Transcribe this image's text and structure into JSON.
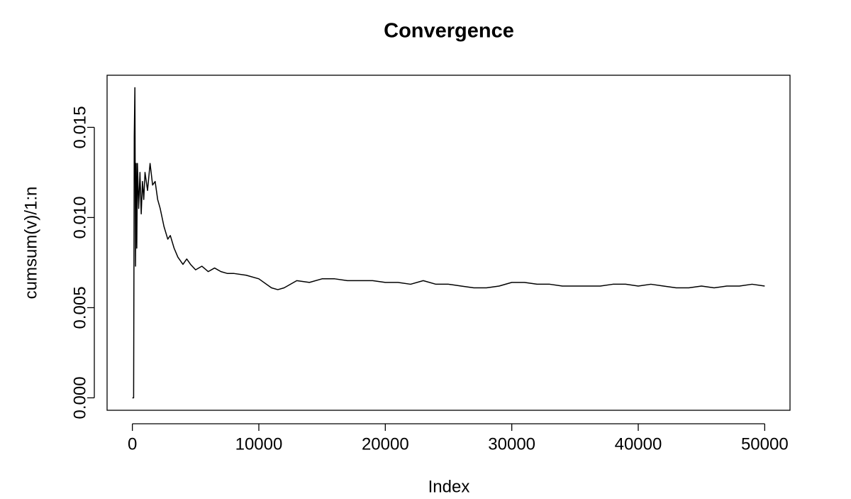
{
  "chart_data": {
    "type": "line",
    "title": "Convergence",
    "x_label": "Index",
    "y_label": "cumsum(v)/1:n",
    "color": "#000000",
    "x": [
      1,
      100,
      150,
      200,
      250,
      300,
      350,
      400,
      500,
      600,
      700,
      800,
      900,
      1000,
      1200,
      1400,
      1600,
      1800,
      2000,
      2200,
      2500,
      2800,
      3000,
      3300,
      3600,
      4000,
      4300,
      4600,
      5000,
      5500,
      6000,
      6500,
      7000,
      7500,
      8000,
      9000,
      10000,
      11000,
      11500,
      12000,
      13000,
      14000,
      15000,
      16000,
      17000,
      18000,
      19000,
      20000,
      21000,
      22000,
      23000,
      24000,
      25000,
      26000,
      27000,
      28000,
      29000,
      30000,
      31000,
      32000,
      33000,
      34000,
      35000,
      36000,
      37000,
      38000,
      39000,
      40000,
      41000,
      42000,
      43000,
      44000,
      45000,
      46000,
      47000,
      48000,
      49000,
      50000
    ],
    "values": [
      0,
      0,
      0.0145,
      0.0172,
      0.0073,
      0.013,
      0.0083,
      0.013,
      0.0105,
      0.0125,
      0.0102,
      0.012,
      0.011,
      0.0125,
      0.0115,
      0.013,
      0.0118,
      0.012,
      0.011,
      0.0105,
      0.0095,
      0.0088,
      0.009,
      0.0083,
      0.0078,
      0.0074,
      0.0077,
      0.0074,
      0.0071,
      0.0073,
      0.007,
      0.0072,
      0.007,
      0.0069,
      0.0069,
      0.0068,
      0.0066,
      0.0061,
      0.006,
      0.0061,
      0.0065,
      0.0064,
      0.0066,
      0.0066,
      0.0065,
      0.0065,
      0.0065,
      0.0064,
      0.0064,
      0.0063,
      0.0065,
      0.0063,
      0.0063,
      0.0062,
      0.0061,
      0.0061,
      0.0062,
      0.0064,
      0.0064,
      0.0063,
      0.0063,
      0.0062,
      0.0062,
      0.0062,
      0.0062,
      0.0063,
      0.0063,
      0.0062,
      0.0063,
      0.0062,
      0.0061,
      0.0061,
      0.0062,
      0.0061,
      0.0062,
      0.0062,
      0.0063,
      0.0062
    ],
    "xlim": [
      -1999,
      52000
    ],
    "ylim": [
      -0.00069,
      0.01789
    ],
    "xticks": [
      0,
      10000,
      20000,
      30000,
      40000,
      50000
    ],
    "yticks": [
      {
        "value": 0,
        "label": "0.000"
      },
      {
        "value": 0.005,
        "label": "0.005"
      },
      {
        "value": 0.01,
        "label": "0.010"
      },
      {
        "value": 0.015,
        "label": "0.015"
      }
    ]
  }
}
